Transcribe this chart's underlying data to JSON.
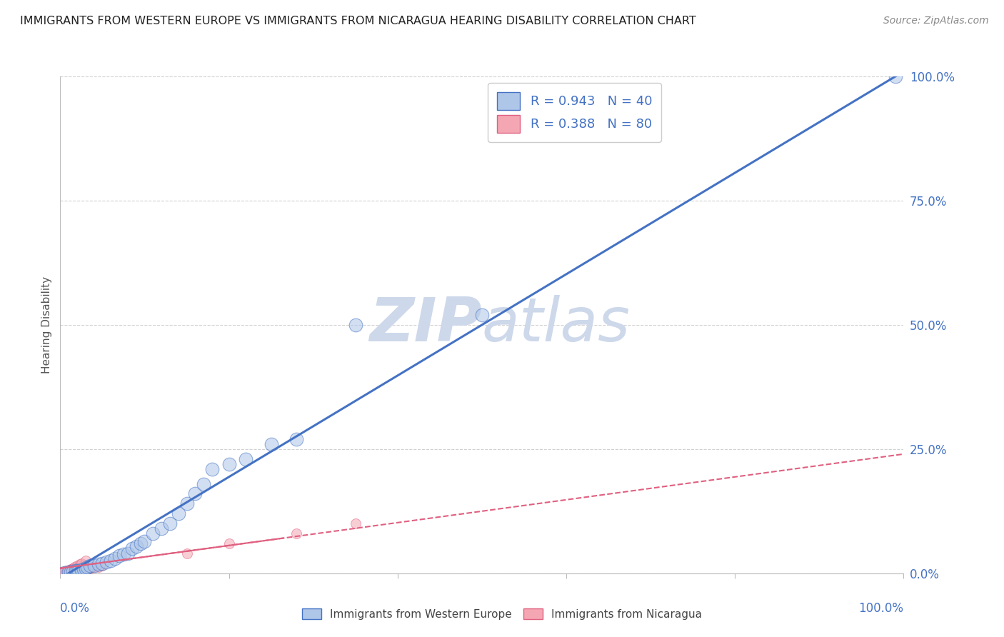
{
  "title": "IMMIGRANTS FROM WESTERN EUROPE VS IMMIGRANTS FROM NICARAGUA HEARING DISABILITY CORRELATION CHART",
  "source": "Source: ZipAtlas.com",
  "ylabel_ticks": [
    "0.0%",
    "25.0%",
    "50.0%",
    "75.0%",
    "100.0%"
  ],
  "ylabel_label": "Hearing Disability",
  "legend_entries": [
    {
      "label": "Immigrants from Western Europe",
      "color": "#aec6e8",
      "R": 0.943,
      "N": 40
    },
    {
      "label": "Immigrants from Nicaragua",
      "color": "#f4a7b3",
      "R": 0.388,
      "N": 80
    }
  ],
  "blue_scatter_x": [
    0.005,
    0.01,
    0.012,
    0.015,
    0.018,
    0.02,
    0.022,
    0.025,
    0.028,
    0.03,
    0.032,
    0.035,
    0.04,
    0.045,
    0.05,
    0.055,
    0.06,
    0.065,
    0.07,
    0.075,
    0.08,
    0.085,
    0.09,
    0.095,
    0.1,
    0.11,
    0.12,
    0.13,
    0.14,
    0.15,
    0.16,
    0.17,
    0.18,
    0.2,
    0.22,
    0.25,
    0.28,
    0.35,
    0.5,
    0.99
  ],
  "blue_scatter_y": [
    0.001,
    0.003,
    0.003,
    0.004,
    0.005,
    0.005,
    0.006,
    0.007,
    0.008,
    0.01,
    0.012,
    0.015,
    0.015,
    0.018,
    0.02,
    0.022,
    0.025,
    0.03,
    0.035,
    0.038,
    0.04,
    0.05,
    0.055,
    0.06,
    0.065,
    0.08,
    0.09,
    0.1,
    0.12,
    0.14,
    0.16,
    0.18,
    0.21,
    0.22,
    0.23,
    0.26,
    0.27,
    0.5,
    0.52,
    1.0
  ],
  "pink_scatter_x": [
    0.001,
    0.001,
    0.001,
    0.001,
    0.001,
    0.002,
    0.002,
    0.002,
    0.002,
    0.002,
    0.003,
    0.003,
    0.003,
    0.003,
    0.003,
    0.004,
    0.004,
    0.004,
    0.005,
    0.005,
    0.005,
    0.006,
    0.006,
    0.006,
    0.007,
    0.007,
    0.008,
    0.008,
    0.009,
    0.01,
    0.01,
    0.011,
    0.012,
    0.012,
    0.013,
    0.015,
    0.016,
    0.017,
    0.018,
    0.02,
    0.022,
    0.025,
    0.028,
    0.03,
    0.032,
    0.035,
    0.038,
    0.04,
    0.045,
    0.05,
    0.001,
    0.001,
    0.002,
    0.002,
    0.003,
    0.003,
    0.001,
    0.002,
    0.003,
    0.004,
    0.004,
    0.005,
    0.006,
    0.007,
    0.008,
    0.009,
    0.01,
    0.011,
    0.012,
    0.013,
    0.015,
    0.017,
    0.02,
    0.023,
    0.025,
    0.03,
    0.15,
    0.2,
    0.28,
    0.35
  ],
  "pink_scatter_y": [
    0.001,
    0.001,
    0.001,
    0.001,
    0.001,
    0.001,
    0.001,
    0.001,
    0.001,
    0.001,
    0.001,
    0.001,
    0.001,
    0.001,
    0.001,
    0.001,
    0.001,
    0.001,
    0.002,
    0.002,
    0.002,
    0.002,
    0.002,
    0.002,
    0.002,
    0.002,
    0.002,
    0.003,
    0.003,
    0.003,
    0.003,
    0.003,
    0.003,
    0.004,
    0.004,
    0.004,
    0.004,
    0.005,
    0.005,
    0.005,
    0.006,
    0.006,
    0.007,
    0.007,
    0.008,
    0.01,
    0.012,
    0.012,
    0.013,
    0.015,
    0.001,
    0.001,
    0.001,
    0.001,
    0.001,
    0.001,
    0.002,
    0.002,
    0.002,
    0.003,
    0.003,
    0.004,
    0.004,
    0.005,
    0.005,
    0.006,
    0.006,
    0.007,
    0.008,
    0.009,
    0.01,
    0.012,
    0.015,
    0.018,
    0.02,
    0.025,
    0.04,
    0.06,
    0.08,
    0.1
  ],
  "blue_line_color": "#4472c4",
  "pink_line_color": "#e06080",
  "scatter_blue_color": "#aec6e8",
  "scatter_pink_color": "#f4a7b3",
  "grid_color": "#cccccc",
  "background_color": "#ffffff",
  "watermark_color": "#cdd8ea",
  "title_fontsize": 11.5,
  "source_fontsize": 10
}
